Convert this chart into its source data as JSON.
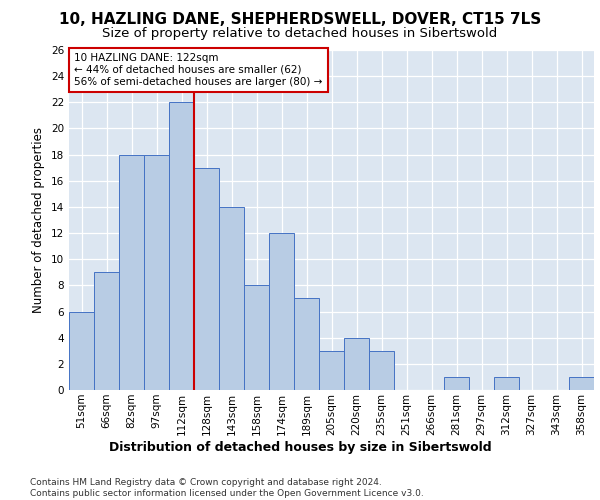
{
  "title1": "10, HAZLING DANE, SHEPHERDSWELL, DOVER, CT15 7LS",
  "title2": "Size of property relative to detached houses in Sibertswold",
  "xlabel": "Distribution of detached houses by size in Sibertswold",
  "ylabel": "Number of detached properties",
  "categories": [
    "51sqm",
    "66sqm",
    "82sqm",
    "97sqm",
    "112sqm",
    "128sqm",
    "143sqm",
    "158sqm",
    "174sqm",
    "189sqm",
    "205sqm",
    "220sqm",
    "235sqm",
    "251sqm",
    "266sqm",
    "281sqm",
    "297sqm",
    "312sqm",
    "327sqm",
    "343sqm",
    "358sqm"
  ],
  "values": [
    6,
    9,
    18,
    18,
    22,
    17,
    14,
    8,
    12,
    7,
    3,
    4,
    3,
    0,
    0,
    1,
    0,
    1,
    0,
    0,
    1
  ],
  "bar_color": "#b8cce4",
  "bar_edge_color": "#4472c4",
  "background_color": "#dce6f1",
  "grid_color": "#ffffff",
  "vline_x": 4.5,
  "vline_color": "#cc0000",
  "annotation_text": "10 HAZLING DANE: 122sqm\n← 44% of detached houses are smaller (62)\n56% of semi-detached houses are larger (80) →",
  "annotation_box_color": "#ffffff",
  "annotation_box_edge": "#cc0000",
  "ylim": [
    0,
    26
  ],
  "yticks": [
    0,
    2,
    4,
    6,
    8,
    10,
    12,
    14,
    16,
    18,
    20,
    22,
    24,
    26
  ],
  "footer": "Contains HM Land Registry data © Crown copyright and database right 2024.\nContains public sector information licensed under the Open Government Licence v3.0.",
  "title1_fontsize": 11,
  "title2_fontsize": 9.5,
  "xlabel_fontsize": 9,
  "ylabel_fontsize": 8.5,
  "tick_fontsize": 7.5,
  "footer_fontsize": 6.5,
  "annot_fontsize": 7.5
}
